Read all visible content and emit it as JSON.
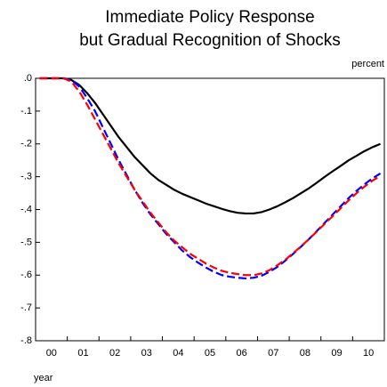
{
  "chart_data": {
    "type": "line",
    "title": [
      "Immediate Policy Response",
      "but Gradual Recognition of Shocks"
    ],
    "y_label": "percent",
    "x_label": "year",
    "categories": [
      "00",
      null,
      null,
      null,
      "01",
      null,
      null,
      null,
      "02",
      null,
      null,
      null,
      "03",
      null,
      null,
      null,
      "04",
      null,
      null,
      null,
      "05",
      null,
      null,
      null,
      "06",
      null,
      null,
      null,
      "07",
      null,
      null,
      null,
      "08",
      null,
      null,
      null,
      "09",
      null,
      null,
      null,
      "10",
      null,
      null,
      null
    ],
    "ylim": [
      -0.8,
      0
    ],
    "yticks": [
      {
        "value": 0,
        "label": ".0"
      },
      {
        "value": -0.1,
        "label": "-.1"
      },
      {
        "value": -0.2,
        "label": "-.2"
      },
      {
        "value": -0.3,
        "label": "-.3"
      },
      {
        "value": -0.4,
        "label": "-.4"
      },
      {
        "value": -0.5,
        "label": "-.5"
      },
      {
        "value": -0.6,
        "label": "-.6"
      },
      {
        "value": -0.7,
        "label": "-.7"
      },
      {
        "value": -0.8,
        "label": "-.8"
      }
    ],
    "series": [
      {
        "color": "#000000",
        "style": "solid",
        "values": [
          0,
          0,
          0,
          0,
          -0.005,
          -0.02,
          -0.045,
          -0.075,
          -0.11,
          -0.145,
          -0.18,
          -0.21,
          -0.24,
          -0.265,
          -0.29,
          -0.31,
          -0.325,
          -0.34,
          -0.352,
          -0.362,
          -0.372,
          -0.382,
          -0.39,
          -0.398,
          -0.405,
          -0.41,
          -0.412,
          -0.412,
          -0.408,
          -0.4,
          -0.39,
          -0.378,
          -0.365,
          -0.35,
          -0.335,
          -0.318,
          -0.3,
          -0.283,
          -0.267,
          -0.25,
          -0.236,
          -0.222,
          -0.21,
          -0.2
        ]
      },
      {
        "color": "#0000ff",
        "style": "dashed",
        "values": [
          0,
          0,
          0,
          0,
          -0.005,
          -0.025,
          -0.06,
          -0.1,
          -0.15,
          -0.2,
          -0.25,
          -0.295,
          -0.34,
          -0.38,
          -0.415,
          -0.445,
          -0.475,
          -0.5,
          -0.525,
          -0.545,
          -0.562,
          -0.577,
          -0.59,
          -0.6,
          -0.605,
          -0.608,
          -0.61,
          -0.608,
          -0.602,
          -0.59,
          -0.575,
          -0.556,
          -0.535,
          -0.513,
          -0.49,
          -0.465,
          -0.44,
          -0.415,
          -0.39,
          -0.365,
          -0.343,
          -0.323,
          -0.305,
          -0.29
        ]
      },
      {
        "color": "#ff0000",
        "style": "dashed",
        "values": [
          0,
          0,
          0,
          0,
          -0.01,
          -0.04,
          -0.08,
          -0.125,
          -0.17,
          -0.215,
          -0.26,
          -0.3,
          -0.34,
          -0.375,
          -0.41,
          -0.44,
          -0.47,
          -0.495,
          -0.515,
          -0.535,
          -0.55,
          -0.565,
          -0.577,
          -0.587,
          -0.593,
          -0.597,
          -0.6,
          -0.6,
          -0.595,
          -0.585,
          -0.57,
          -0.553,
          -0.533,
          -0.512,
          -0.49,
          -0.467,
          -0.443,
          -0.42,
          -0.396,
          -0.372,
          -0.35,
          -0.33,
          -0.312,
          -0.298
        ]
      }
    ]
  }
}
